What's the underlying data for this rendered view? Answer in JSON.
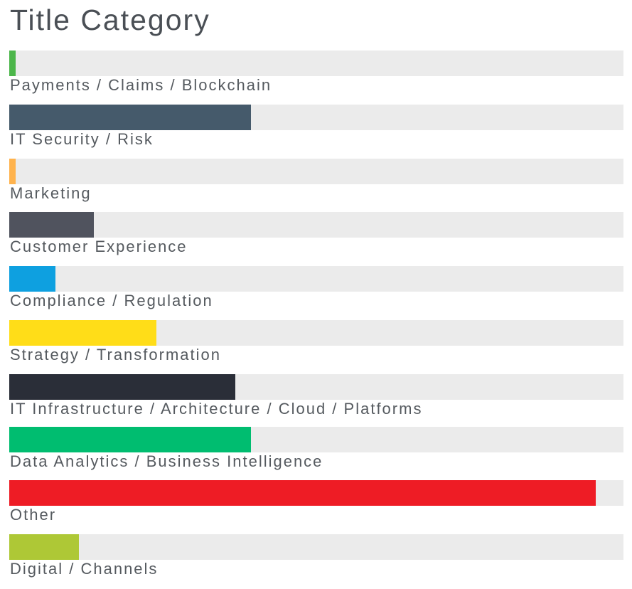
{
  "chart_data": {
    "type": "bar",
    "orientation": "horizontal",
    "title": "Title Category",
    "categories": [
      "Payments / Claims / Blockchain",
      "IT Security / Risk",
      "Marketing",
      "Customer Experience",
      "Compliance / Regulation",
      "Strategy / Transformation",
      "IT Infrastructure / Architecture / Cloud / Platforms",
      "Data Analytics / Business Intelligence",
      "Other",
      "Digital / Channels"
    ],
    "values": [
      1,
      39.4,
      1,
      13.8,
      7.5,
      24,
      36.8,
      39.4,
      95.5,
      11.3
    ],
    "colors": [
      "#4cb64a",
      "#455a6b",
      "#ffb34d",
      "#50535e",
      "#0ea0e0",
      "#ffdd18",
      "#2a2e38",
      "#00bd70",
      "#ee1c25",
      "#aec836"
    ],
    "xlim": [
      0,
      100
    ],
    "grid": false,
    "legend": "none"
  }
}
